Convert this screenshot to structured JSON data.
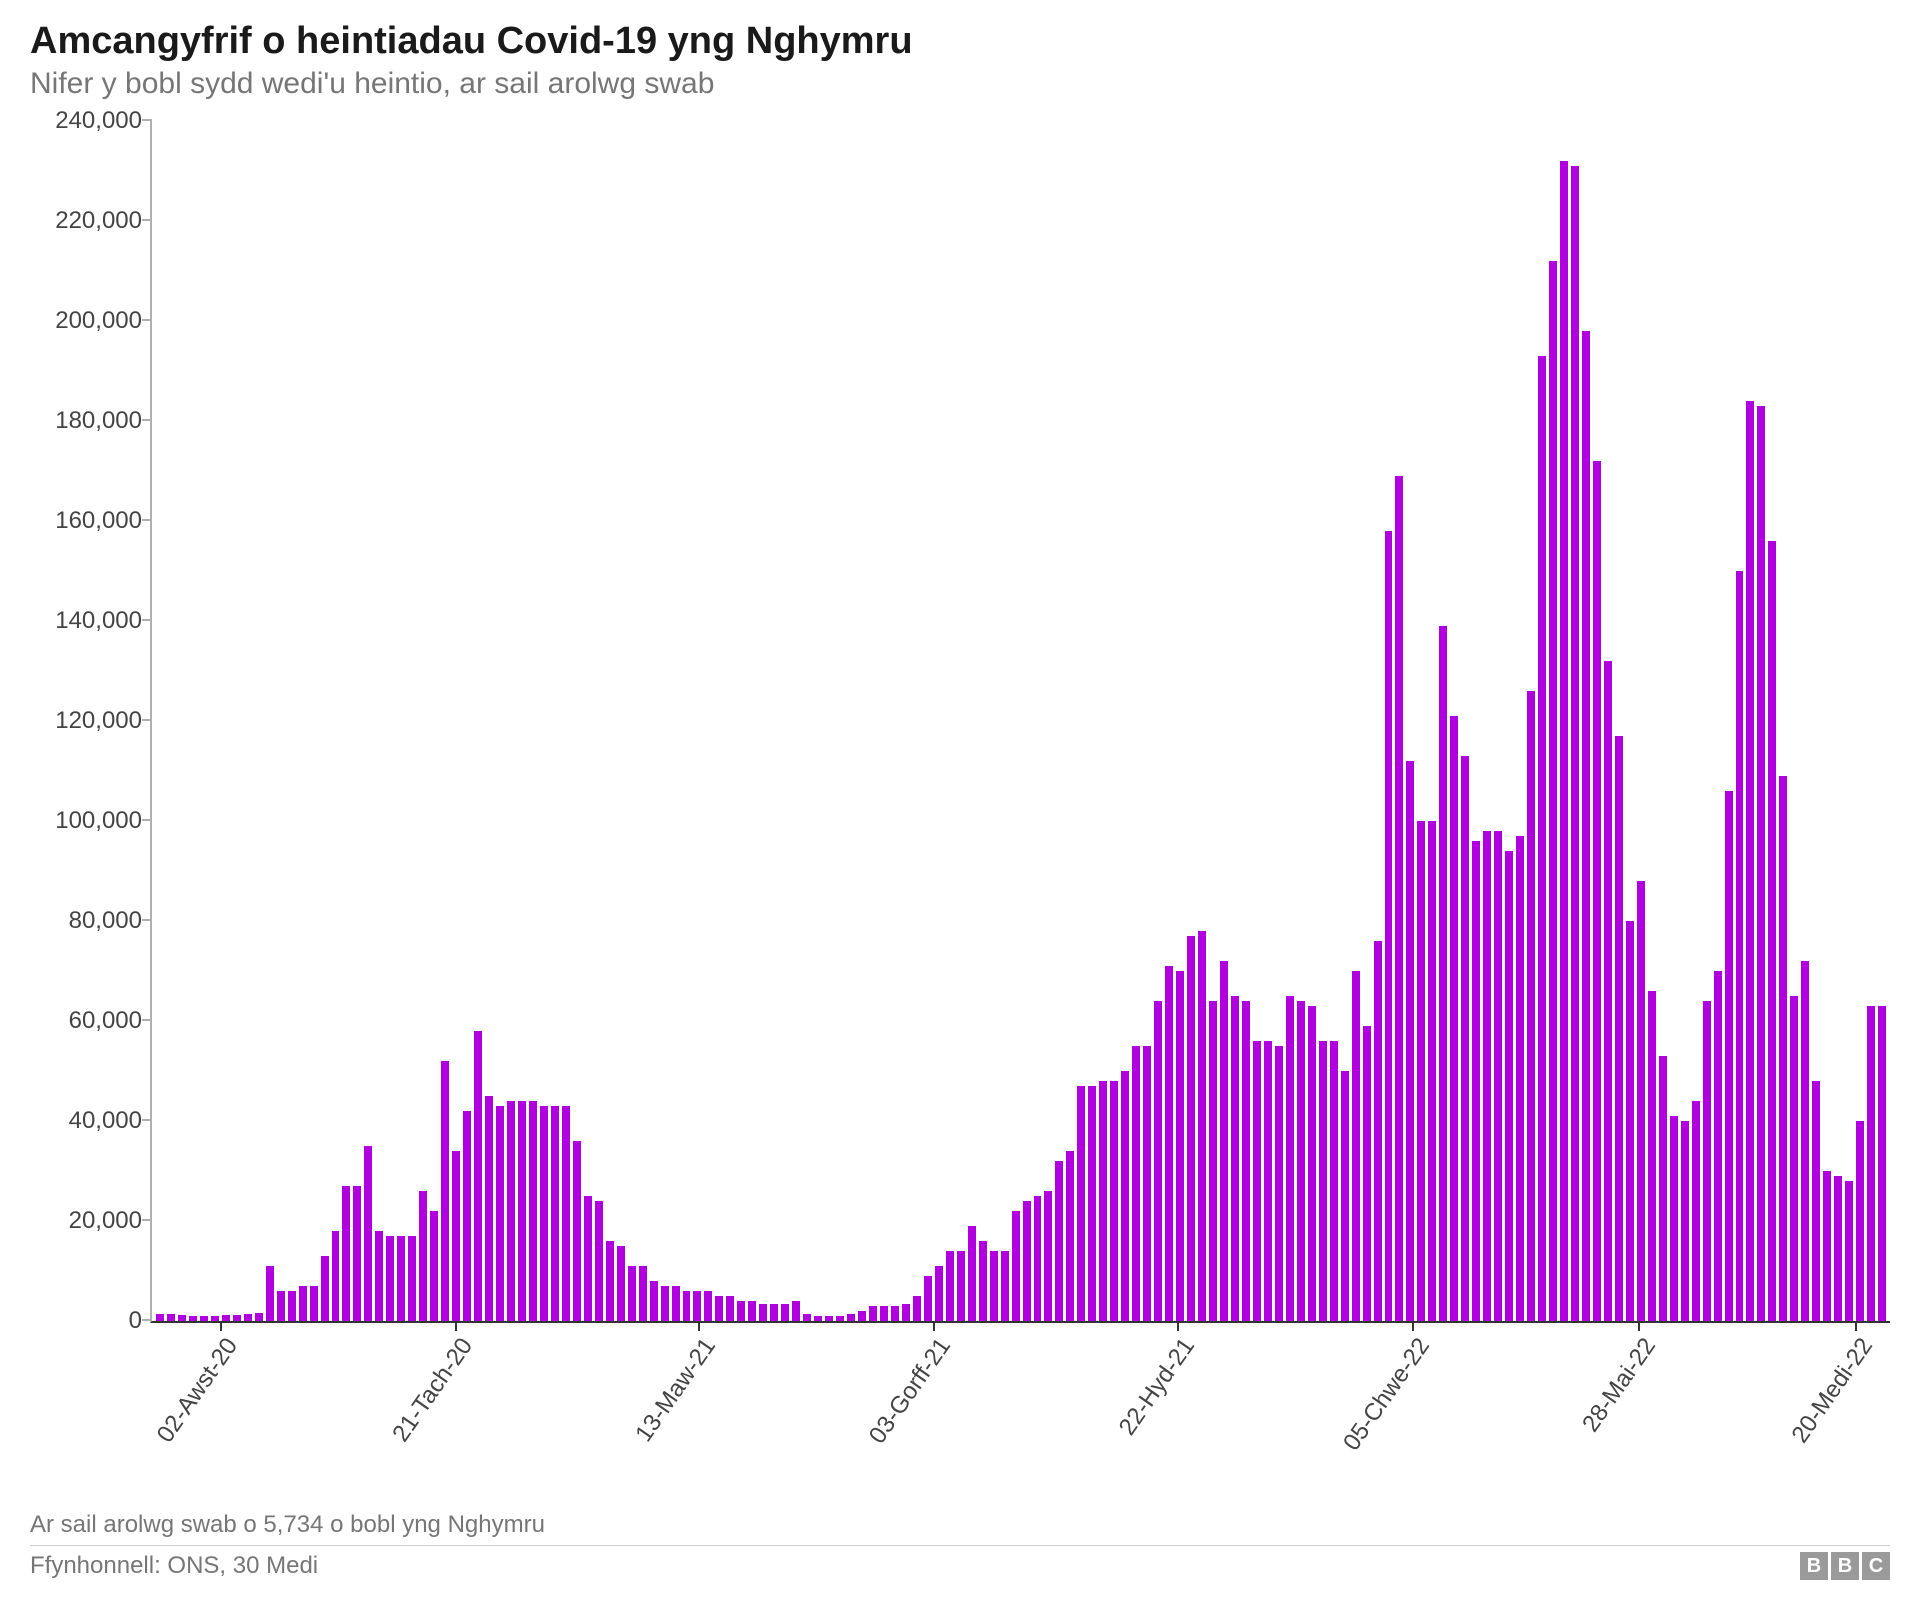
{
  "title": "Amcangyfrif o heintiadau Covid-19 yng Nghymru",
  "subtitle": "Nifer y bobl sydd wedi'u heintio, ar sail arolwg swab",
  "footnote": "Ar sail arolwg swab o 5,734 o bobl yng Nghymru",
  "source": "Ffynhonnell: ONS, 30 Medi",
  "logo": [
    "B",
    "B",
    "C"
  ],
  "chart": {
    "type": "bar",
    "bar_color": "#b000e0",
    "background_color": "#ffffff",
    "axis_color": "#b0b0b0",
    "baseline_color": "#333333",
    "tick_font_size": 24,
    "ylim": [
      0,
      240000
    ],
    "yticks": [
      0,
      20000,
      40000,
      60000,
      80000,
      100000,
      120000,
      140000,
      160000,
      180000,
      200000,
      220000,
      240000
    ],
    "ytick_labels": [
      "0",
      "20,000",
      "40,000",
      "60,000",
      "80,000",
      "100,000",
      "120,000",
      "140,000",
      "160,000",
      "180,000",
      "200,000",
      "220,000",
      "240,000"
    ],
    "xticks": [
      {
        "pos": 0.04,
        "label": "02-Awst-20"
      },
      {
        "pos": 0.175,
        "label": "21-Tach-20"
      },
      {
        "pos": 0.315,
        "label": "13-Maw-21"
      },
      {
        "pos": 0.45,
        "label": "03-Gorff-21"
      },
      {
        "pos": 0.59,
        "label": "22-Hyd-21"
      },
      {
        "pos": 0.725,
        "label": "05-Chwe-22"
      },
      {
        "pos": 0.855,
        "label": "28-Mai-22"
      },
      {
        "pos": 0.98,
        "label": "20-Medi-22"
      }
    ],
    "values": [
      1500,
      1500,
      1200,
      1100,
      1000,
      1100,
      1200,
      1300,
      1500,
      1600,
      11000,
      6000,
      6000,
      7000,
      7000,
      13000,
      18000,
      27000,
      27000,
      35000,
      18000,
      17000,
      17000,
      17000,
      26000,
      22000,
      52000,
      34000,
      42000,
      58000,
      45000,
      43000,
      44000,
      44000,
      44000,
      43000,
      43000,
      43000,
      36000,
      25000,
      24000,
      16000,
      15000,
      11000,
      11000,
      8000,
      7000,
      7000,
      6000,
      6000,
      6000,
      5000,
      5000,
      4000,
      4000,
      3500,
      3500,
      3500,
      4000,
      1500,
      1000,
      1000,
      1000,
      1500,
      2000,
      3000,
      3000,
      3000,
      3500,
      5000,
      9000,
      11000,
      14000,
      14000,
      19000,
      16000,
      14000,
      14000,
      22000,
      24000,
      25000,
      26000,
      32000,
      34000,
      47000,
      47000,
      48000,
      48000,
      50000,
      55000,
      55000,
      64000,
      71000,
      70000,
      77000,
      78000,
      64000,
      72000,
      65000,
      64000,
      56000,
      56000,
      55000,
      65000,
      64000,
      63000,
      56000,
      56000,
      50000,
      70000,
      59000,
      76000,
      158000,
      169000,
      112000,
      100000,
      100000,
      139000,
      121000,
      113000,
      96000,
      98000,
      98000,
      94000,
      97000,
      126000,
      193000,
      212000,
      232000,
      231000,
      198000,
      172000,
      132000,
      117000,
      80000,
      88000,
      66000,
      53000,
      41000,
      40000,
      44000,
      64000,
      70000,
      106000,
      150000,
      184000,
      183000,
      156000,
      109000,
      65000,
      72000,
      48000,
      30000,
      29000,
      28000,
      40000,
      63000,
      63000
    ]
  }
}
